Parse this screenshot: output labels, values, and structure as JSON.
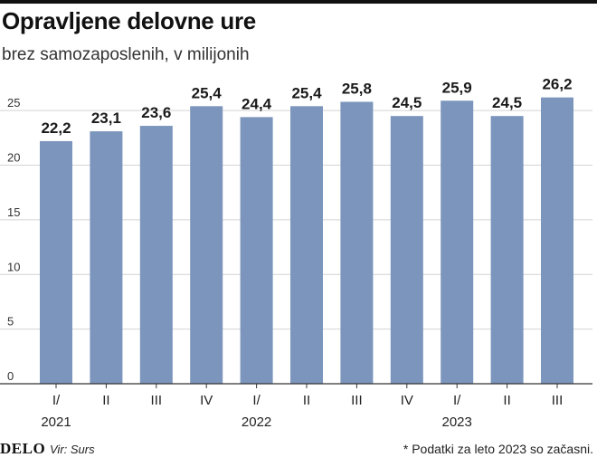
{
  "header": {
    "title": "Opravljene delovne ure",
    "subtitle": "brez samozaposlenih, v milijonih"
  },
  "footer": {
    "logo": "DELO",
    "source": "Vir: Surs",
    "note": "* Podatki za leto 2023 so začasni."
  },
  "chart_data": {
    "type": "bar",
    "title": "Opravljene delovne ure",
    "subtitle": "brez samozaposlenih, v milijonih",
    "categories": [
      "I/",
      "II",
      "III",
      "IV",
      "I/",
      "II",
      "III",
      "IV",
      "I/",
      "II",
      "III"
    ],
    "year_labels": [
      {
        "label": "2021",
        "index": 0
      },
      {
        "label": "2022",
        "index": 4
      },
      {
        "label": "2023",
        "index": 8
      }
    ],
    "values": [
      22.2,
      23.1,
      23.6,
      25.4,
      24.4,
      25.4,
      25.8,
      24.5,
      25.9,
      24.5,
      26.2
    ],
    "value_labels": [
      "22,2",
      "23,1",
      "23,6",
      "25,4",
      "24,4",
      "25,4",
      "25,8",
      "24,5",
      "25,9",
      "24,5",
      "26,2"
    ],
    "ylim": [
      0,
      27
    ],
    "yticks": [
      0,
      5,
      10,
      15,
      20,
      25
    ],
    "grid": true,
    "bar_color": "#7b95bd",
    "grid_color": "#d4d4d4"
  }
}
